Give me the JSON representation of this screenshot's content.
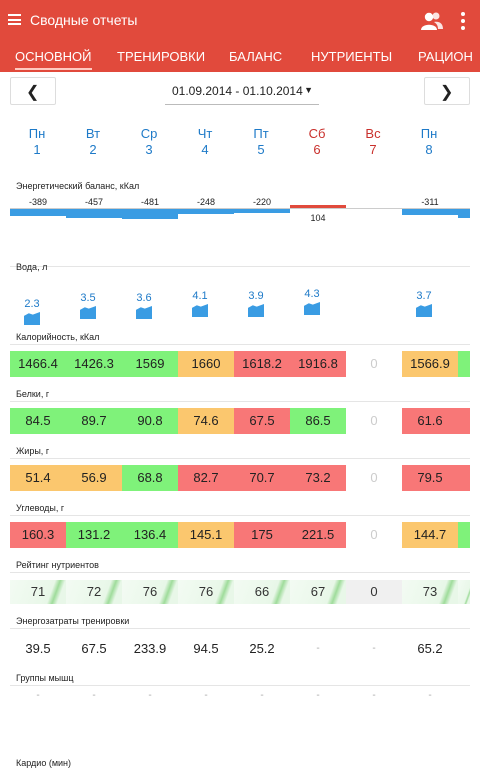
{
  "app": {
    "title": "Сводные отчеты"
  },
  "tabs": [
    {
      "label": "ОСНОВНОЙ",
      "active": true
    },
    {
      "label": "ТРЕНИРОВКИ"
    },
    {
      "label": "БАЛАНС"
    },
    {
      "label": "НУТРИЕНТЫ"
    },
    {
      "label": "РАЦИОН"
    }
  ],
  "date_range": "01.09.2014 - 01.10.2014",
  "days": [
    {
      "name": "Пн",
      "num": "1",
      "color": "#1e7ac8"
    },
    {
      "name": "Вт",
      "num": "2",
      "color": "#1e7ac8"
    },
    {
      "name": "Ср",
      "num": "3",
      "color": "#1e7ac8"
    },
    {
      "name": "Чт",
      "num": "4",
      "color": "#1e7ac8"
    },
    {
      "name": "Пт",
      "num": "5",
      "color": "#1e7ac8"
    },
    {
      "name": "Сб",
      "num": "6",
      "color": "#c9302c"
    },
    {
      "name": "Вс",
      "num": "7",
      "color": "#c9302c"
    },
    {
      "name": "Пн",
      "num": "8",
      "color": "#1e7ac8"
    }
  ],
  "energy_balance": {
    "label": "Энергетический баланс, кКал",
    "values": [
      "-389",
      "-457",
      "-481",
      "-248",
      "-220",
      "104",
      "",
      "-311"
    ]
  },
  "water": {
    "label": "Вода, л",
    "values": [
      "2.3",
      "3.5",
      "3.6",
      "4.1",
      "3.9",
      "4.3",
      "",
      "3.7"
    ]
  },
  "calories": {
    "label": "Калорийность, кКал",
    "values": [
      "1466.4",
      "1426.3",
      "1569",
      "1660",
      "1618.2",
      "1916.8",
      "0",
      "1566.9"
    ]
  },
  "proteins": {
    "label": "Белки, г",
    "values": [
      "84.5",
      "89.7",
      "90.8",
      "74.6",
      "67.5",
      "86.5",
      "0",
      "61.6"
    ]
  },
  "fats": {
    "label": "Жиры, г",
    "values": [
      "51.4",
      "56.9",
      "68.8",
      "82.7",
      "70.7",
      "73.2",
      "0",
      "79.5"
    ]
  },
  "carbs": {
    "label": "Углеводы, г",
    "values": [
      "160.3",
      "131.2",
      "136.4",
      "145.1",
      "175",
      "221.5",
      "0",
      "144.7"
    ]
  },
  "nutrient_rating": {
    "label": "Рейтинг нутриентов",
    "values": [
      "71",
      "72",
      "76",
      "76",
      "66",
      "67",
      "0",
      "73"
    ]
  },
  "training_energy": {
    "label": "Энергозатраты тренировки",
    "values": [
      "39.5",
      "67.5",
      "233.9",
      "94.5",
      "25.2",
      "-",
      "-",
      "65.2"
    ]
  },
  "muscle_groups": {
    "label": "Группы мышц",
    "values": [
      "-",
      "-",
      "-",
      "-",
      "-",
      "-",
      "-",
      "-"
    ]
  },
  "cardio": {
    "label": "Кардио (мин)"
  },
  "colors": {
    "header": "#e14a3c",
    "green": "#7ff27a",
    "yellow": "#fbc76e",
    "red": "#f87777",
    "blue": "#3a9ce3"
  },
  "icons": [
    "menu-icon",
    "user-group-icon",
    "more-vert-icon",
    "chevron-left-icon",
    "chevron-right-icon",
    "dropdown-arrow-icon"
  ]
}
